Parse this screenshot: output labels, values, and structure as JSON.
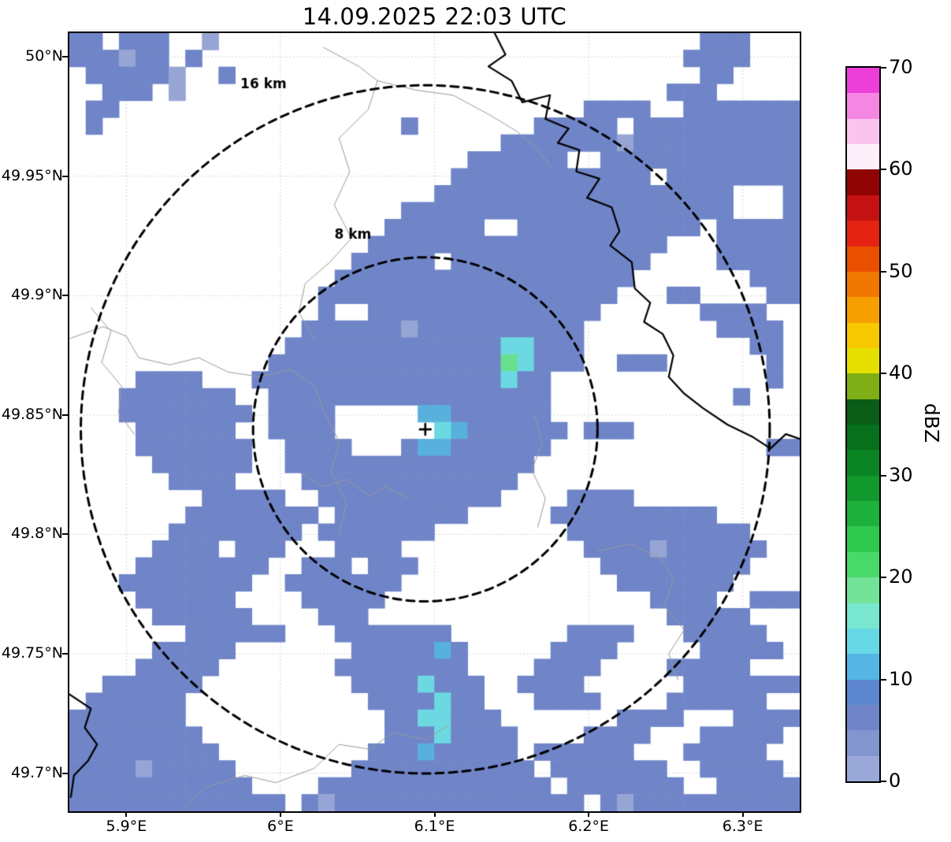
{
  "title": "14.09.2025 22:03 UTC",
  "colorbar": {
    "label": "dBZ",
    "min": 0,
    "max": 70,
    "ticks": [
      0,
      10,
      20,
      30,
      40,
      50,
      60,
      70
    ],
    "colors_bottom_to_top": [
      "#9aa8d8",
      "#8295cf",
      "#6f85c8",
      "#5c87cf",
      "#55b5e3",
      "#67d8e6",
      "#79e6cf",
      "#74e39a",
      "#49d969",
      "#2fc94f",
      "#1db13c",
      "#12992e",
      "#0b8424",
      "#07701c",
      "#0a5c16",
      "#7fae17",
      "#e5e000",
      "#f6c800",
      "#f5a000",
      "#f07800",
      "#ea4f00",
      "#e42312",
      "#c41212",
      "#8f0303",
      "#fdf0fa",
      "#f9c5ef",
      "#f387e3",
      "#ec3fd8"
    ]
  },
  "map": {
    "lon_min": 5.863,
    "lon_max": 6.337,
    "lat_min": 49.684,
    "lat_max": 50.01,
    "x_ticks": [
      {
        "value": 5.9,
        "label": "5.9°E"
      },
      {
        "value": 6.0,
        "label": "6°E"
      },
      {
        "value": 6.1,
        "label": "6.1°E"
      },
      {
        "value": 6.2,
        "label": "6.2°E"
      },
      {
        "value": 6.3,
        "label": "6.3°E"
      }
    ],
    "y_ticks": [
      {
        "value": 50.0,
        "label": "50°N"
      },
      {
        "value": 49.95,
        "label": "49.95°N"
      },
      {
        "value": 49.9,
        "label": "49.9°N"
      },
      {
        "value": 49.85,
        "label": "49.85°N"
      },
      {
        "value": 49.8,
        "label": "49.8°N"
      },
      {
        "value": 49.75,
        "label": "49.75°N"
      },
      {
        "value": 49.7,
        "label": "49.7°N"
      }
    ],
    "radar_site": {
      "lon": 6.094,
      "lat": 49.844,
      "marker": "+"
    },
    "range_rings": [
      {
        "radius_km": 8,
        "label": "8 km",
        "label_lon": 6.047,
        "label_lat": 49.924
      },
      {
        "radius_km": 16,
        "label": "16 km",
        "label_lon": 5.989,
        "label_lat": 49.987
      }
    ],
    "rivers_black": [
      [
        [
          6.139,
          50.01
        ],
        [
          6.146,
          50.001
        ],
        [
          6.135,
          49.996
        ],
        [
          6.15,
          49.99
        ],
        [
          6.157,
          49.981
        ],
        [
          6.175,
          49.984
        ],
        [
          6.172,
          49.974
        ],
        [
          6.187,
          49.97
        ],
        [
          6.18,
          49.964
        ],
        [
          6.194,
          49.961
        ],
        [
          6.192,
          49.952
        ],
        [
          6.207,
          49.949
        ],
        [
          6.199,
          49.941
        ],
        [
          6.215,
          49.937
        ],
        [
          6.22,
          49.927
        ],
        [
          6.214,
          49.921
        ],
        [
          6.228,
          49.914
        ],
        [
          6.23,
          49.903
        ],
        [
          6.24,
          49.897
        ],
        [
          6.236,
          49.889
        ],
        [
          6.248,
          49.884
        ],
        [
          6.255,
          49.875
        ],
        [
          6.252,
          49.866
        ],
        [
          6.262,
          49.859
        ],
        [
          6.274,
          49.853
        ],
        [
          6.29,
          49.846
        ],
        [
          6.306,
          49.841
        ],
        [
          6.318,
          49.836
        ],
        [
          6.328,
          49.842
        ],
        [
          6.337,
          49.84
        ]
      ],
      [
        [
          5.863,
          49.733
        ],
        [
          5.877,
          49.727
        ],
        [
          5.873,
          49.719
        ],
        [
          5.881,
          49.712
        ],
        [
          5.875,
          49.705
        ],
        [
          5.866,
          49.699
        ],
        [
          5.864,
          49.69
        ]
      ]
    ],
    "boundaries_gray": [
      [
        [
          6.028,
          50.004
        ],
        [
          6.051,
          49.996
        ],
        [
          6.063,
          49.99
        ],
        [
          6.057,
          49.978
        ],
        [
          6.038,
          49.966
        ],
        [
          6.045,
          49.952
        ],
        [
          6.035,
          49.938
        ],
        [
          6.046,
          49.924
        ],
        [
          6.032,
          49.914
        ],
        [
          6.016,
          49.905
        ],
        [
          6.012,
          49.893
        ],
        [
          6.022,
          49.882
        ]
      ],
      [
        [
          6.063,
          49.99
        ],
        [
          6.089,
          49.986
        ],
        [
          6.112,
          49.984
        ],
        [
          6.135,
          49.976
        ],
        [
          6.153,
          49.969
        ],
        [
          6.166,
          49.962
        ],
        [
          6.176,
          49.954
        ]
      ],
      [
        [
          5.863,
          49.882
        ],
        [
          5.885,
          49.887
        ],
        [
          5.9,
          49.883
        ],
        [
          5.908,
          49.874
        ],
        [
          5.928,
          49.871
        ],
        [
          5.947,
          49.874
        ],
        [
          5.966,
          49.868
        ],
        [
          5.987,
          49.866
        ],
        [
          6.007,
          49.869
        ],
        [
          6.022,
          49.862
        ],
        [
          6.028,
          49.852
        ],
        [
          6.038,
          49.839
        ],
        [
          6.033,
          49.826
        ],
        [
          6.043,
          49.813
        ],
        [
          6.038,
          49.8
        ]
      ],
      [
        [
          5.936,
          49.684
        ],
        [
          5.951,
          49.694
        ],
        [
          5.977,
          49.699
        ],
        [
          5.997,
          49.696
        ],
        [
          6.022,
          49.702
        ],
        [
          6.038,
          49.712
        ],
        [
          6.058,
          49.71
        ],
        [
          6.073,
          49.717
        ],
        [
          6.094,
          49.714
        ],
        [
          6.109,
          49.72
        ]
      ],
      [
        [
          6.206,
          49.793
        ],
        [
          6.227,
          49.796
        ],
        [
          6.247,
          49.79
        ],
        [
          6.255,
          49.781
        ],
        [
          6.249,
          49.77
        ],
        [
          6.262,
          49.76
        ],
        [
          6.252,
          49.75
        ],
        [
          6.258,
          49.739
        ]
      ],
      [
        [
          5.877,
          49.895
        ],
        [
          5.89,
          49.885
        ],
        [
          5.884,
          49.872
        ],
        [
          5.897,
          49.862
        ],
        [
          5.895,
          49.851
        ],
        [
          5.905,
          49.842
        ]
      ],
      [
        [
          6.012,
          49.826
        ],
        [
          6.028,
          49.82
        ],
        [
          6.043,
          49.823
        ],
        [
          6.058,
          49.816
        ],
        [
          6.068,
          49.82
        ],
        [
          6.083,
          49.815
        ]
      ],
      [
        [
          6.165,
          49.85
        ],
        [
          6.17,
          49.838
        ],
        [
          6.163,
          49.827
        ],
        [
          6.172,
          49.815
        ],
        [
          6.167,
          49.803
        ]
      ]
    ]
  },
  "chart_data": {
    "type": "heatmap",
    "title": "14.09.2025 22:03 UTC",
    "units": "dBZ",
    "value_range": [
      0,
      70
    ],
    "xlabel_ticks": [
      "5.9°E",
      "6°E",
      "6.1°E",
      "6.2°E",
      "6.3°E"
    ],
    "ylabel_ticks": [
      "49.7°N",
      "49.75°N",
      "49.8°N",
      "49.85°N",
      "49.9°N",
      "49.95°N",
      "50°N"
    ],
    "grid": {
      "ncols": 44,
      "nrows": 46,
      "lon_range": [
        5.863,
        6.337
      ],
      "lat_range": [
        50.01,
        49.684
      ],
      "value_key": {
        ".": null,
        "a": 1,
        "b": 5,
        "c": 10,
        "d": 13,
        "e": 18
      },
      "color_key": {
        "a": "#97a5d4",
        "b": "#6f85c8",
        "c": "#58b0dd",
        "d": "#6cd9e2",
        "e": "#67df8f"
      },
      "rows": [
        "bb.bbb..a.............................bbb...",
        "bbbabb.b.............................bbbb...",
        ".bbbbba..b............................bb....",
        "..bbb.a.............................bbb.....",
        ".bb............................bbbb..bbbbbbb",
        ".b..................b.......bbbbb.bbbbbbbbbb",
        "..........................bbbbbbbabbbbbbbbbb",
        "........................bbbbbb..bbbbbbbbbbbb",
        ".......................bbbbbbbbbbbb.bbbbbbbb",
        "......................bbbbbbbbbbbbbbbbbb...b",
        "....................bbbbbbbbbbbbbbbbbbbb...b",
        "...................bbbbbb..bbbbbbbbbbb.bbbbb",
        "..................bbbbbbbbbbbbbbbbbb...bbbbb",
        ".................bbbbb.bbbbbbbbbbbb....bbbbb",
        "................bbbbbbbbbbbbbbbbbb.......bbb",
        "...............bbbbbbbbbbbbbbbbbb...bb....bb",
        "...............b..bbbbbbbbbbbbbb......bbbb..",
        "..............bbbbbbabbbbbbbbbb........bbbb.",
        ".............bbbbbbbbbbbbbddbbb..........bb.",
        "............bbbbbbbbbbbbbbedbbb..bbb......b.",
        "....bbbb...bbbbbbbbbbbbbbbdbb.............b.",
        "...bbbbbbb..bbbbbbbbbbbbbbbbb...........b...",
        "...bbbbbbbb.bbbb.....ccbbbbbb...............",
        "....bbbbbb..bbbb......dcbbbbbb.bbb..........",
        "....bbbbbbb..bbbb...bccbbbbbb.............bb",
        ".....bbbbbb..bbbbbbbbbbbbbbb................",
        "......bbbb....bbbbbbbbbbbbb.................",
        "........bbbbb..bbbbbbbbbbb....bbbb..........",
        ".......bbbbbbbb.bbbbbbbb.....bbbbbbbbbb.....",
        "......bbbbbbbb.bbbbbbb........bbbbbbbbbbb...",
        ".....bbbb.bbb...bbbb...........bbbbabbbbbb..",
        "....bbbbbbbb..bbb.bbb...........bbbbbbbbb...",
        "...bbbbbbbb..bbbbbbb.............bbbbbbb....",
        "....bbbbbb....bbbbb................bbbb..bbb",
        ".....bbbbbb....bbb..................bbbbb...",
        ".......bbbbbb...bbbbbbb.......bbbb...bbbbb..",
        ".....bbbbb.......bbbbbcb.....bbbb.....bbbbb.",
        "....bbbbb.......bbbbbbbb....bbbb....bbbbb...",
        "..bbbbbb.........bbbbdbbb..bbbb......bbbbbbb",
        ".bbbbbb...........bbbbdbb...bbbb....bbbbbb..",
        "bbbbbbb............bbddbbb.......bbbb...bbbb",
        "bbbbbbbb...........bbbdbbbb....bbbb...bbbbb.",
        "bbbbbbbbb.........bbbcbbbbb.bbbbbb...bbbbb..",
        "bbbbabbbbb.......bbbbbbbbbbb.bbbbbbb..bbbbb.",
        "bbbbbbbbbbb....bbbbbbbbbbbbbb.bbbbbbb..bbbbb",
        "bbbbbbbbbbbbb.babbbbbbbbbbbbbbb.babbbbbbbbbb"
      ]
    }
  }
}
